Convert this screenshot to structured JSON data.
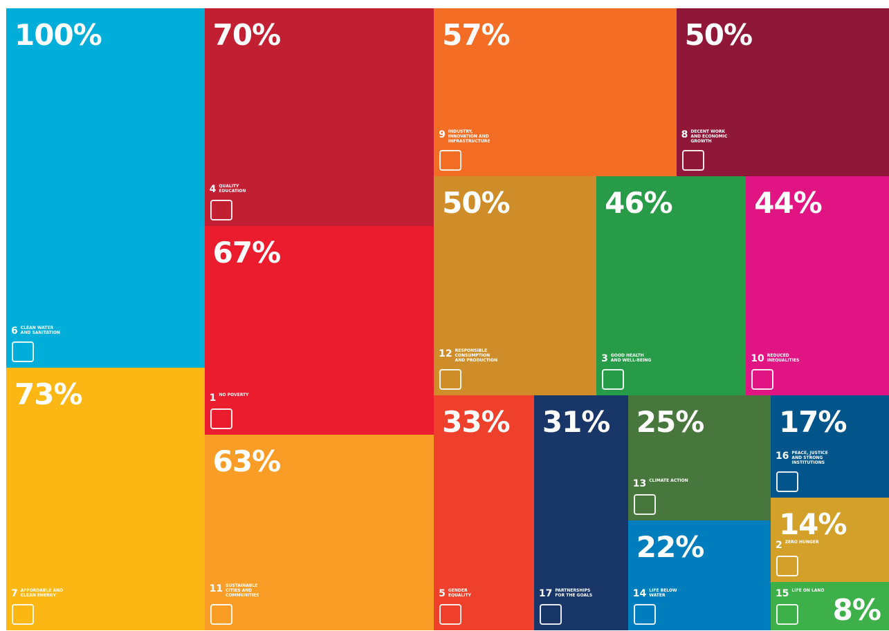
{
  "chart_data": {
    "type": "treemap",
    "categories": [
      "CLEAN WATER AND SANITATION",
      "AFFORDABLE AND CLEAN ENERGY",
      "QUALITY EDUCATION",
      "NO POVERTY",
      "SUSTAINABLE CITIES AND COMMUNITIES",
      "INDUSTRY, INNOVATION AND INFRASTRUCTURE",
      "DECENT WORK AND ECONOMIC GROWTH",
      "RESPONSIBLE CONSUMPTION AND PRODUCTION",
      "GOOD HEALTH AND WELL-BEING",
      "REDUCED INEQUALITIES",
      "GENDER EQUALITY",
      "PARTNERSHIPS FOR THE GOALS",
      "CLIMATE ACTION",
      "LIFE BELOW WATER",
      "PEACE, JUSTICE AND STRONG INSTITUTIONS",
      "ZERO HUNGER",
      "LIFE ON LAND"
    ],
    "goal_numbers": [
      6,
      7,
      4,
      1,
      11,
      9,
      8,
      12,
      3,
      10,
      5,
      17,
      13,
      14,
      16,
      2,
      15
    ],
    "values": [
      100,
      73,
      70,
      67,
      63,
      57,
      50,
      50,
      46,
      44,
      33,
      31,
      25,
      22,
      17,
      14,
      8
    ],
    "value_labels": [
      "100%",
      "73%",
      "70%",
      "67%",
      "63%",
      "57%",
      "50%",
      "50%",
      "46%",
      "44%",
      "33%",
      "31%",
      "25%",
      "22%",
      "17%",
      "14%",
      "8%"
    ],
    "colors": [
      "#00aed9",
      "#fdb714",
      "#c31f33",
      "#eb1c2d",
      "#f99d26",
      "#f36d25",
      "#8f1838",
      "#cf8d2a",
      "#279b48",
      "#e11484",
      "#ef402b",
      "#183668",
      "#48773e",
      "#007dbc",
      "#02558b",
      "#d3a029",
      "#3eb049"
    ]
  }
}
